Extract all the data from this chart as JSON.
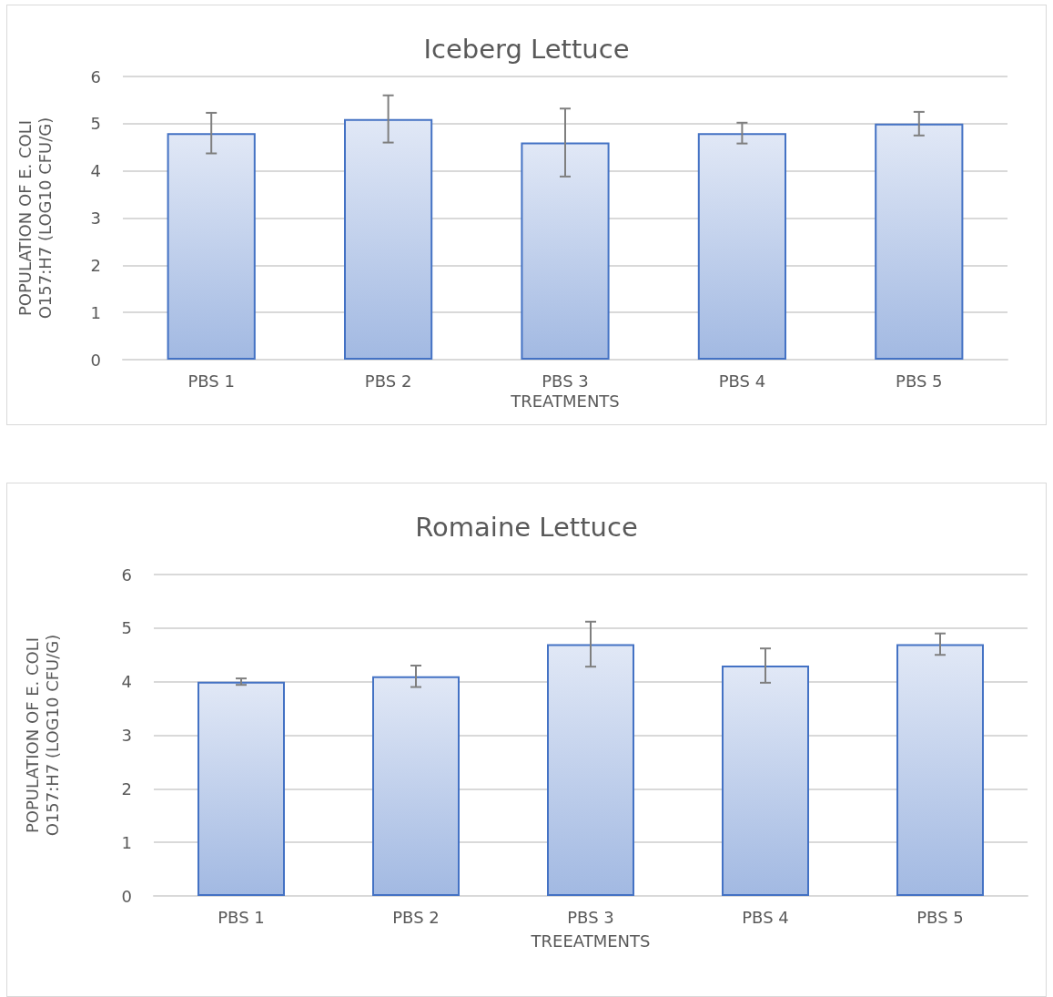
{
  "chart_data": [
    {
      "type": "bar",
      "title": "Iceberg Lettuce",
      "xlabel": "TREATMENTS",
      "ylabel": "POPULATION OF E. COLI O157:H7 (LOG10 CFU/G)",
      "categories": [
        "PBS 1",
        "PBS 2",
        "PBS 3",
        "PBS 4",
        "PBS 5"
      ],
      "values": [
        4.8,
        5.1,
        4.6,
        4.8,
        5.0
      ],
      "errors": [
        0.43,
        0.5,
        0.72,
        0.22,
        0.25
      ],
      "color": "#4472c4",
      "ylim": [
        0,
        6
      ],
      "yticks": [
        0,
        1,
        2,
        3,
        4,
        5,
        6
      ],
      "grid": "y"
    },
    {
      "type": "bar",
      "title": "Romaine Lettuce",
      "xlabel": "TREEATMENTS",
      "ylabel": "POPULATION OF E. COLI O157:H7 (LOG10 CFU/G)",
      "categories": [
        "PBS 1",
        "PBS 2",
        "PBS 3",
        "PBS 4",
        "PBS 5"
      ],
      "values": [
        4.0,
        4.1,
        4.7,
        4.3,
        4.7
      ],
      "errors": [
        0.06,
        0.2,
        0.42,
        0.32,
        0.2
      ],
      "color": "#4472c4",
      "ylim": [
        0,
        6
      ],
      "yticks": [
        0,
        1,
        2,
        3,
        4,
        5,
        6
      ],
      "grid": "y"
    }
  ]
}
